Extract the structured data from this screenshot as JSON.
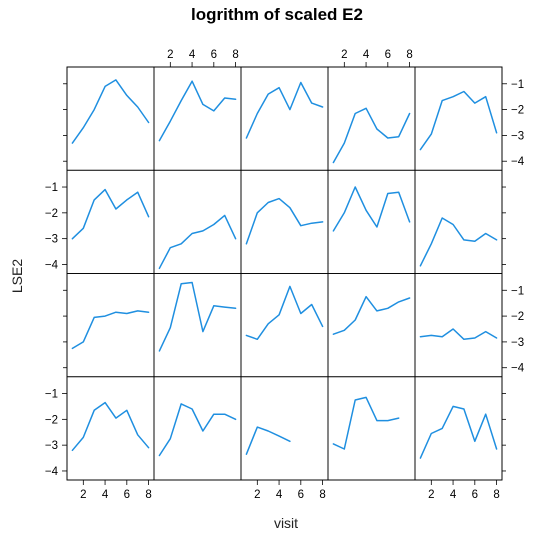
{
  "chart_data": {
    "type": "line",
    "title": "logrithm of scaled E2",
    "xlabel": "visit",
    "ylabel": "LSE2",
    "layout": {
      "columns": 5,
      "rows": 4
    },
    "xlim": [
      0.5,
      8.5
    ],
    "ylim": [
      -4.35,
      -0.35
    ],
    "x_ticks": [
      2,
      4,
      6,
      8
    ],
    "y_ticks": [
      -1,
      -2,
      -3,
      -4
    ],
    "grid": false,
    "series_color": "#1f8fe0",
    "panels": [
      {
        "row": 1,
        "col": 1,
        "x": [
          1,
          2,
          3,
          4,
          5,
          6,
          7,
          8
        ],
        "y": [
          -3.3,
          -2.7,
          -2.0,
          -1.1,
          -0.85,
          -1.45,
          -1.9,
          -2.5
        ]
      },
      {
        "row": 1,
        "col": 2,
        "x": [
          1,
          2,
          3,
          4,
          5,
          6,
          7,
          8
        ],
        "y": [
          -3.2,
          -2.45,
          -1.65,
          -0.9,
          -1.8,
          -2.05,
          -1.55,
          -1.6
        ]
      },
      {
        "row": 1,
        "col": 3,
        "x": [
          1,
          2,
          3,
          4,
          5,
          6,
          7,
          8
        ],
        "y": [
          -3.1,
          -2.15,
          -1.4,
          -1.15,
          -2.0,
          -0.95,
          -1.75,
          -1.9
        ]
      },
      {
        "row": 1,
        "col": 4,
        "x": [
          1,
          2,
          3,
          4,
          5,
          6,
          7,
          8
        ],
        "y": [
          -4.05,
          -3.3,
          -2.15,
          -1.95,
          -2.75,
          -3.1,
          -3.05,
          -2.15
        ]
      },
      {
        "row": 1,
        "col": 5,
        "x": [
          1,
          2,
          3,
          4,
          5,
          6,
          7,
          8
        ],
        "y": [
          -3.55,
          -2.95,
          -1.65,
          -1.5,
          -1.3,
          -1.75,
          -1.5,
          -2.9
        ]
      },
      {
        "row": 2,
        "col": 1,
        "x": [
          1,
          2,
          3,
          4,
          5,
          6,
          7,
          8
        ],
        "y": [
          -3.0,
          -2.6,
          -1.5,
          -1.1,
          -1.85,
          -1.5,
          -1.2,
          -2.15
        ]
      },
      {
        "row": 2,
        "col": 2,
        "x": [
          1,
          2,
          3,
          4,
          5,
          6,
          7,
          8
        ],
        "y": [
          -4.15,
          -3.35,
          -3.2,
          -2.8,
          -2.7,
          -2.45,
          -2.1,
          -3.0
        ]
      },
      {
        "row": 2,
        "col": 3,
        "x": [
          1,
          2,
          3,
          4,
          5,
          6,
          7,
          8
        ],
        "y": [
          -3.2,
          -2.0,
          -1.6,
          -1.45,
          -1.8,
          -2.5,
          -2.4,
          -2.35
        ]
      },
      {
        "row": 2,
        "col": 4,
        "x": [
          1,
          2,
          3,
          4,
          5,
          6,
          7,
          8
        ],
        "y": [
          -2.7,
          -2.0,
          -1.0,
          -1.9,
          -2.55,
          -1.25,
          -1.2,
          -2.35
        ]
      },
      {
        "row": 2,
        "col": 5,
        "x": [
          1,
          2,
          3,
          4,
          5,
          6,
          7,
          8
        ],
        "y": [
          -4.05,
          -3.2,
          -2.2,
          -2.45,
          -3.05,
          -3.1,
          -2.8,
          -3.05
        ]
      },
      {
        "row": 3,
        "col": 1,
        "x": [
          1,
          2,
          3,
          4,
          5,
          6,
          7,
          8
        ],
        "y": [
          -3.25,
          -3.0,
          -2.05,
          -2.0,
          -1.85,
          -1.9,
          -1.8,
          -1.85
        ]
      },
      {
        "row": 3,
        "col": 2,
        "x": [
          1,
          2,
          3,
          4,
          5,
          6,
          7,
          8
        ],
        "y": [
          -3.35,
          -2.45,
          -0.75,
          -0.7,
          -2.6,
          -1.6,
          -1.65,
          -1.7
        ]
      },
      {
        "row": 3,
        "col": 3,
        "x": [
          1,
          2,
          3,
          4,
          5,
          6,
          7,
          8
        ],
        "y": [
          -2.75,
          -2.9,
          -2.3,
          -1.95,
          -0.85,
          -1.9,
          -1.55,
          -2.4
        ]
      },
      {
        "row": 3,
        "col": 4,
        "x": [
          1,
          2,
          3,
          4,
          5,
          6,
          7,
          8
        ],
        "y": [
          -2.7,
          -2.55,
          -2.15,
          -1.25,
          -1.8,
          -1.7,
          -1.45,
          -1.3
        ]
      },
      {
        "row": 3,
        "col": 5,
        "x": [
          1,
          2,
          3,
          4,
          5,
          6,
          7,
          8
        ],
        "y": [
          -2.8,
          -2.75,
          -2.8,
          -2.5,
          -2.9,
          -2.85,
          -2.6,
          -2.85
        ]
      },
      {
        "row": 4,
        "col": 1,
        "x": [
          1,
          2,
          3,
          4,
          5,
          6,
          7,
          8
        ],
        "y": [
          -3.2,
          -2.7,
          -1.65,
          -1.35,
          -1.95,
          -1.65,
          -2.6,
          -3.1
        ]
      },
      {
        "row": 4,
        "col": 2,
        "x": [
          1,
          2,
          3,
          4,
          5,
          6,
          7,
          8
        ],
        "y": [
          -3.4,
          -2.75,
          -1.4,
          -1.6,
          -2.45,
          -1.8,
          -1.8,
          -2.0
        ]
      },
      {
        "row": 4,
        "col": 3,
        "x": [
          1,
          2,
          3,
          4,
          5
        ],
        "y": [
          -3.35,
          -2.3,
          -2.45,
          -2.65,
          -2.85
        ]
      },
      {
        "row": 4,
        "col": 4,
        "x": [
          1,
          2,
          3,
          4,
          5,
          6,
          7
        ],
        "y": [
          -2.95,
          -3.15,
          -1.25,
          -1.15,
          -2.05,
          -2.05,
          -1.95
        ]
      },
      {
        "row": 4,
        "col": 5,
        "x": [
          1,
          2,
          3,
          4,
          5,
          6,
          7,
          8
        ],
        "y": [
          -3.5,
          -2.55,
          -2.35,
          -1.5,
          -1.6,
          -2.85,
          -1.8,
          -3.15
        ]
      }
    ]
  }
}
